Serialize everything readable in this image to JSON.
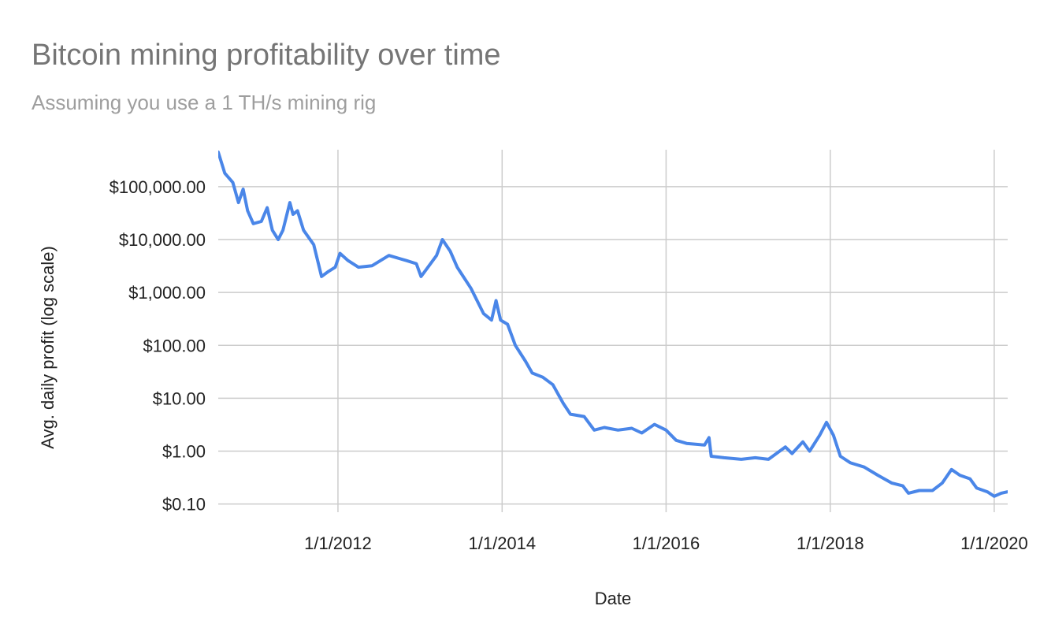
{
  "chart_data": {
    "type": "line",
    "title": "Bitcoin mining profitability over time",
    "subtitle": "Assuming you use a 1 TH/s mining rig",
    "xlabel": "Date",
    "ylabel": "Avg. daily profit (log scale)",
    "y_scale": "log",
    "ylim": [
      0.07,
      500000
    ],
    "xlim": [
      "2010-07-17",
      "2020-03-01"
    ],
    "grid": true,
    "legend": "none",
    "line_color": "#4a86e8",
    "x_ticks": [
      {
        "date": "2012-01-01",
        "label": "1/1/2012"
      },
      {
        "date": "2014-01-01",
        "label": "1/1/2014"
      },
      {
        "date": "2016-01-01",
        "label": "1/1/2016"
      },
      {
        "date": "2018-01-01",
        "label": "1/1/2018"
      },
      {
        "date": "2020-01-01",
        "label": "1/1/2020"
      }
    ],
    "y_ticks": [
      {
        "value": 100000,
        "label": "$100,000.00"
      },
      {
        "value": 10000,
        "label": "$10,000.00"
      },
      {
        "value": 1000,
        "label": "$1,000.00"
      },
      {
        "value": 100,
        "label": "$100.00"
      },
      {
        "value": 10,
        "label": "$10.00"
      },
      {
        "value": 1,
        "label": "$1.00"
      },
      {
        "value": 0.1,
        "label": "$0.10"
      }
    ],
    "series": [
      {
        "points": [
          [
            "2010-07-17",
            450000
          ],
          [
            "2010-08-15",
            180000
          ],
          [
            "2010-09-20",
            120000
          ],
          [
            "2010-10-15",
            50000
          ],
          [
            "2010-11-05",
            90000
          ],
          [
            "2010-11-25",
            35000
          ],
          [
            "2010-12-20",
            20000
          ],
          [
            "2011-01-25",
            22000
          ],
          [
            "2011-02-20",
            40000
          ],
          [
            "2011-03-15",
            15000
          ],
          [
            "2011-04-10",
            10000
          ],
          [
            "2011-05-01",
            15000
          ],
          [
            "2011-06-01",
            50000
          ],
          [
            "2011-06-15",
            30000
          ],
          [
            "2011-07-05",
            35000
          ],
          [
            "2011-08-01",
            15000
          ],
          [
            "2011-09-15",
            8000
          ],
          [
            "2011-10-20",
            2000
          ],
          [
            "2011-11-20",
            2500
          ],
          [
            "2011-12-20",
            3000
          ],
          [
            "2012-01-10",
            5500
          ],
          [
            "2012-02-15",
            4000
          ],
          [
            "2012-04-01",
            3000
          ],
          [
            "2012-06-01",
            3200
          ],
          [
            "2012-08-15",
            5000
          ],
          [
            "2012-11-01",
            4000
          ],
          [
            "2012-12-15",
            3500
          ],
          [
            "2013-01-05",
            2000
          ],
          [
            "2013-02-05",
            3000
          ],
          [
            "2013-03-15",
            5000
          ],
          [
            "2013-04-10",
            10000
          ],
          [
            "2013-05-15",
            6000
          ],
          [
            "2013-06-15",
            3000
          ],
          [
            "2013-08-15",
            1200
          ],
          [
            "2013-10-10",
            400
          ],
          [
            "2013-11-15",
            300
          ],
          [
            "2013-12-05",
            700
          ],
          [
            "2013-12-25",
            300
          ],
          [
            "2014-01-25",
            250
          ],
          [
            "2014-03-01",
            100
          ],
          [
            "2014-04-15",
            50
          ],
          [
            "2014-05-15",
            30
          ],
          [
            "2014-07-01",
            25
          ],
          [
            "2014-08-15",
            18
          ],
          [
            "2014-09-30",
            8
          ],
          [
            "2014-11-01",
            5
          ],
          [
            "2015-01-01",
            4.5
          ],
          [
            "2015-02-15",
            2.5
          ],
          [
            "2015-04-01",
            2.8
          ],
          [
            "2015-06-01",
            2.5
          ],
          [
            "2015-08-01",
            2.7
          ],
          [
            "2015-09-15",
            2.2
          ],
          [
            "2015-11-10",
            3.2
          ],
          [
            "2016-01-01",
            2.5
          ],
          [
            "2016-02-15",
            1.6
          ],
          [
            "2016-04-01",
            1.4
          ],
          [
            "2016-06-20",
            1.3
          ],
          [
            "2016-07-10",
            1.8
          ],
          [
            "2016-07-20",
            0.8
          ],
          [
            "2016-09-15",
            0.75
          ],
          [
            "2016-12-01",
            0.7
          ],
          [
            "2017-02-01",
            0.75
          ],
          [
            "2017-04-01",
            0.7
          ],
          [
            "2017-06-15",
            1.2
          ],
          [
            "2017-07-15",
            0.9
          ],
          [
            "2017-09-01",
            1.5
          ],
          [
            "2017-10-01",
            1.0
          ],
          [
            "2017-11-15",
            2.0
          ],
          [
            "2017-12-15",
            3.5
          ],
          [
            "2018-01-15",
            2.0
          ],
          [
            "2018-02-15",
            0.8
          ],
          [
            "2018-04-01",
            0.6
          ],
          [
            "2018-06-01",
            0.5
          ],
          [
            "2018-08-01",
            0.35
          ],
          [
            "2018-10-01",
            0.25
          ],
          [
            "2018-11-20",
            0.22
          ],
          [
            "2018-12-15",
            0.16
          ],
          [
            "2019-02-01",
            0.18
          ],
          [
            "2019-04-01",
            0.18
          ],
          [
            "2019-05-15",
            0.25
          ],
          [
            "2019-06-25",
            0.45
          ],
          [
            "2019-08-01",
            0.35
          ],
          [
            "2019-09-15",
            0.3
          ],
          [
            "2019-10-15",
            0.2
          ],
          [
            "2019-12-01",
            0.17
          ],
          [
            "2020-01-01",
            0.14
          ],
          [
            "2020-02-01",
            0.16
          ],
          [
            "2020-03-01",
            0.17
          ]
        ]
      }
    ]
  }
}
